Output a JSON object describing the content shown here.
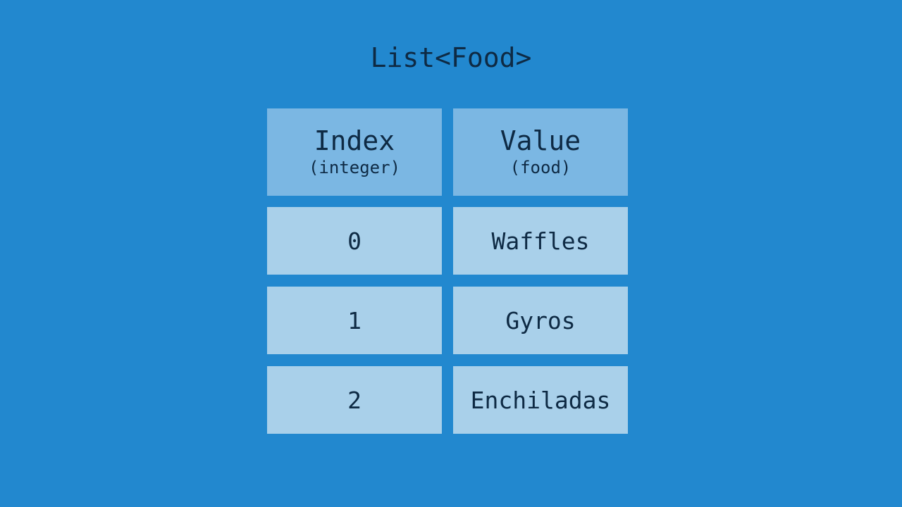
{
  "title": "List<Food>",
  "headers": [
    {
      "label": "Index",
      "type": "(integer)"
    },
    {
      "label": "Value",
      "type": "(food)"
    }
  ],
  "rows": [
    {
      "index": "0",
      "value": "Waffles"
    },
    {
      "index": "1",
      "value": "Gyros"
    },
    {
      "index": "2",
      "value": "Enchiladas"
    }
  ],
  "colors": {
    "background": "#2288cf",
    "header_cell": "#7bb7e3",
    "data_cell": "#a9d0ea",
    "text": "#0e2a44"
  }
}
